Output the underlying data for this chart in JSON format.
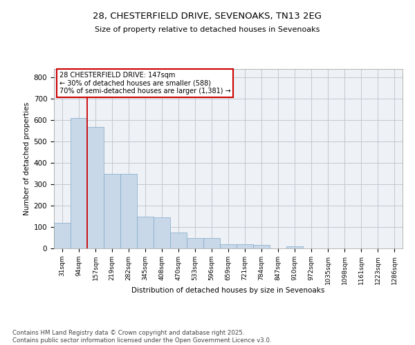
{
  "title1": "28, CHESTERFIELD DRIVE, SEVENOAKS, TN13 2EG",
  "title2": "Size of property relative to detached houses in Sevenoaks",
  "xlabel": "Distribution of detached houses by size in Sevenoaks",
  "ylabel": "Number of detached properties",
  "bar_color": "#c8d8e8",
  "bar_edge_color": "#80a8c8",
  "categories": [
    "31sqm",
    "94sqm",
    "157sqm",
    "219sqm",
    "282sqm",
    "345sqm",
    "408sqm",
    "470sqm",
    "533sqm",
    "596sqm",
    "659sqm",
    "721sqm",
    "784sqm",
    "847sqm",
    "910sqm",
    "972sqm",
    "1035sqm",
    "1098sqm",
    "1161sqm",
    "1223sqm",
    "1286sqm"
  ],
  "values": [
    120,
    610,
    570,
    350,
    350,
    148,
    145,
    75,
    50,
    50,
    20,
    20,
    15,
    0,
    10,
    0,
    0,
    0,
    0,
    0,
    0
  ],
  "property_line_x": 1.5,
  "property_line_color": "#cc0000",
  "annotation_text": "28 CHESTERFIELD DRIVE: 147sqm\n← 30% of detached houses are smaller (588)\n70% of semi-detached houses are larger (1,381) →",
  "annotation_box_color": "#cc0000",
  "annotation_text_color": "#000000",
  "ylim": [
    0,
    840
  ],
  "yticks": [
    0,
    100,
    200,
    300,
    400,
    500,
    600,
    700,
    800
  ],
  "grid_color": "#c0c8d0",
  "background_color": "#eef2f6",
  "footer1": "Contains HM Land Registry data © Crown copyright and database right 2025.",
  "footer2": "Contains public sector information licensed under the Open Government Licence v3.0."
}
